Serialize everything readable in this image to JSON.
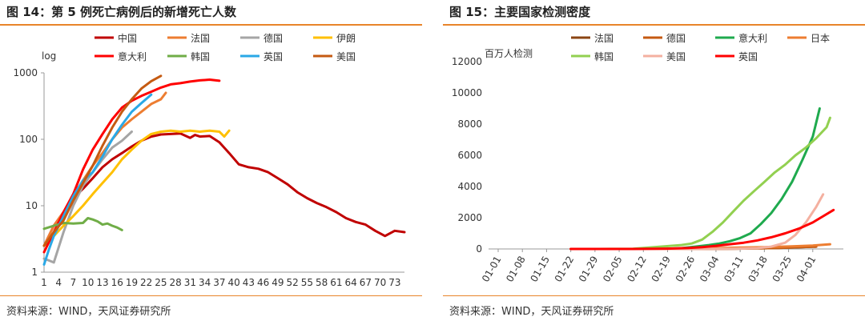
{
  "charts": [
    {
      "title": "图 14：第 5 例死亡病例后的新增死亡人数",
      "source": "资料来源：WIND，天风证券研究所",
      "chart_data": {
        "type": "line",
        "ylabel": "log",
        "xlabel": "",
        "yscale": "log",
        "ylim": [
          1,
          1000
        ],
        "yticks": [
          "1",
          "10",
          "100",
          "1000"
        ],
        "xticks": [
          "1",
          "4",
          "7",
          "10",
          "13",
          "16",
          "19",
          "22",
          "25",
          "28",
          "31",
          "34",
          "37",
          "40",
          "43",
          "46",
          "49",
          "52",
          "55",
          "58",
          "61",
          "64",
          "67",
          "70",
          "73"
        ],
        "xlim": [
          1,
          75
        ],
        "legend_position": "top",
        "grid": false,
        "series": [
          {
            "name": "中国",
            "color": "#c00000",
            "x": [
              1,
              3,
              5,
              7,
              9,
              11,
              13,
              15,
              17,
              19,
              21,
              23,
              25,
              27,
              29,
              31,
              32,
              33,
              35,
              37,
              39,
              41,
              43,
              45,
              47,
              49,
              51,
              53,
              55,
              57,
              59,
              61,
              63,
              65,
              67,
              69,
              71,
              73,
              75
            ],
            "y": [
              2.5,
              5,
              8,
              13,
              18,
              26,
              38,
              50,
              62,
              78,
              95,
              110,
              118,
              120,
              122,
              105,
              116,
              110,
              112,
              90,
              62,
              42,
              38,
              36,
              32,
              26,
              21,
              16,
              13,
              11,
              9.5,
              8,
              6.5,
              5.7,
              5.2,
              4.2,
              3.5,
              4.2,
              4
            ]
          },
          {
            "name": "法国",
            "color": "#ed7d31",
            "x": [
              1,
              3,
              5,
              7,
              9,
              11,
              13,
              15,
              17,
              19,
              21,
              23,
              25,
              26
            ],
            "y": [
              2.5,
              5,
              8,
              14,
              24,
              40,
              62,
              100,
              150,
              200,
              260,
              340,
              400,
              500
            ]
          },
          {
            "name": "德国",
            "color": "#a5a5a5",
            "x": [
              1,
              2,
              3,
              5,
              7,
              9,
              11,
              13,
              15,
              17,
              19
            ],
            "y": [
              1.6,
              1.5,
              1.4,
              4,
              10,
              20,
              32,
              50,
              75,
              95,
              130
            ]
          },
          {
            "name": "伊朗",
            "color": "#ffc000",
            "x": [
              1,
              3,
              5,
              7,
              9,
              11,
              13,
              15,
              17,
              19,
              21,
              23,
              25,
              27,
              29,
              31,
              33,
              35,
              37,
              38,
              39
            ],
            "y": [
              2.5,
              3.5,
              5,
              7,
              10,
              15,
              22,
              32,
              50,
              70,
              95,
              120,
              130,
              135,
              130,
              135,
              130,
              135,
              130,
              110,
              135
            ]
          },
          {
            "name": "意大利",
            "color": "#ff0000",
            "x": [
              1,
              3,
              5,
              7,
              9,
              11,
              13,
              15,
              17,
              19,
              21,
              23,
              25,
              27,
              29,
              31,
              33,
              35,
              37
            ],
            "y": [
              2,
              4,
              8,
              15,
              35,
              70,
              120,
              200,
              300,
              380,
              450,
              520,
              600,
              670,
              700,
              740,
              770,
              790,
              760
            ]
          },
          {
            "name": "韩国",
            "color": "#70ad47",
            "x": [
              1,
              3,
              5,
              7,
              9,
              10,
              11,
              12,
              13,
              14,
              15,
              16,
              17
            ],
            "y": [
              4.5,
              5,
              5.5,
              5.4,
              5.5,
              6.5,
              6.2,
              5.8,
              5.2,
              5.4,
              5,
              4.7,
              4.3
            ]
          },
          {
            "name": "英国",
            "color": "#2aa8e6",
            "x": [
              1,
              2,
              3,
              5,
              7,
              9,
              11,
              13,
              15,
              17,
              19,
              21,
              23
            ],
            "y": [
              1.3,
              2.2,
              3.5,
              7,
              14,
              24,
              32,
              55,
              100,
              165,
              260,
              350,
              470
            ]
          },
          {
            "name": "美国",
            "color": "#c55a11",
            "x": [
              1,
              3,
              5,
              7,
              9,
              11,
              13,
              15,
              17,
              19,
              21,
              23,
              25
            ],
            "y": [
              2.5,
              4,
              6,
              12,
              22,
              40,
              80,
              150,
              260,
              400,
              580,
              750,
              900
            ]
          }
        ]
      }
    },
    {
      "title": "图 15：主要国家检测密度",
      "source": "资料来源：WIND，天风证券研究所",
      "chart_data": {
        "type": "line",
        "ylabel": "百万人检测",
        "xlabel": "",
        "ylim": [
          0,
          12000
        ],
        "yticks": [
          "0",
          "2000",
          "4000",
          "6000",
          "8000",
          "10000",
          "12000"
        ],
        "xticks": [
          "01-01",
          "01-08",
          "01-15",
          "01-22",
          "01-29",
          "02-05",
          "02-12",
          "02-19",
          "02-26",
          "03-04",
          "03-11",
          "03-18",
          "03-25",
          "04-01"
        ],
        "legend_position": "top",
        "grid": false,
        "series": [
          {
            "name": "法国",
            "color": "#8b4513",
            "d": [
              22,
              30,
              40,
              50,
              60,
              70,
              76,
              82,
              86,
              90,
              93
            ],
            "y": [
              0,
              0,
              0,
              0,
              5,
              20,
              40,
              60,
              100,
              130,
              150
            ]
          },
          {
            "name": "德国",
            "color": "#c55a11",
            "d": [
              22,
              30,
              40,
              50,
              60,
              70,
              76,
              82,
              86,
              90,
              93
            ],
            "y": [
              0,
              0,
              0,
              0,
              5,
              20,
              40,
              60,
              100,
              130,
              150
            ]
          },
          {
            "name": "意大利",
            "color": "#1faa4e",
            "d": [
              22,
              30,
              40,
              50,
              54,
              58,
              62,
              65,
              68,
              71,
              74,
              77,
              80,
              83,
              86,
              89,
              92,
              94
            ],
            "y": [
              0,
              0,
              0,
              5,
              50,
              150,
              250,
              350,
              500,
              700,
              1000,
              1600,
              2300,
              3200,
              4300,
              5700,
              7200,
              9000
            ]
          },
          {
            "name": "日本",
            "color": "#ed7d31",
            "d": [
              22,
              30,
              40,
              50,
              60,
              70,
              78,
              86,
              92,
              97
            ],
            "y": [
              0,
              0,
              0,
              10,
              40,
              80,
              120,
              170,
              220,
              300
            ]
          },
          {
            "name": "韩国",
            "color": "#92d050",
            "d": [
              22,
              30,
              40,
              45,
              48,
              51,
              54,
              57,
              60,
              63,
              66,
              69,
              72,
              75,
              78,
              81,
              84,
              87,
              90,
              93,
              96,
              97
            ],
            "y": [
              0,
              0,
              10,
              100,
              150,
              200,
              250,
              350,
              600,
              1100,
              1700,
              2400,
              3100,
              3700,
              4300,
              4900,
              5400,
              6000,
              6500,
              7100,
              7800,
              8400
            ]
          },
          {
            "name": "美国",
            "color": "#f4b0a0",
            "d": [
              22,
              30,
              40,
              50,
              60,
              70,
              76,
              80,
              84,
              87,
              90,
              93,
              95
            ],
            "y": [
              0,
              0,
              0,
              0,
              5,
              20,
              50,
              150,
              400,
              900,
              1700,
              2700,
              3500
            ]
          },
          {
            "name": "英国",
            "color": "#ff0000",
            "d": [
              22,
              30,
              40,
              50,
              56,
              60,
              64,
              68,
              72,
              76,
              80,
              84,
              88,
              92,
              95,
              98
            ],
            "y": [
              0,
              0,
              0,
              20,
              60,
              120,
              200,
              300,
              400,
              550,
              750,
              1000,
              1300,
              1700,
              2100,
              2500
            ]
          }
        ]
      }
    }
  ]
}
